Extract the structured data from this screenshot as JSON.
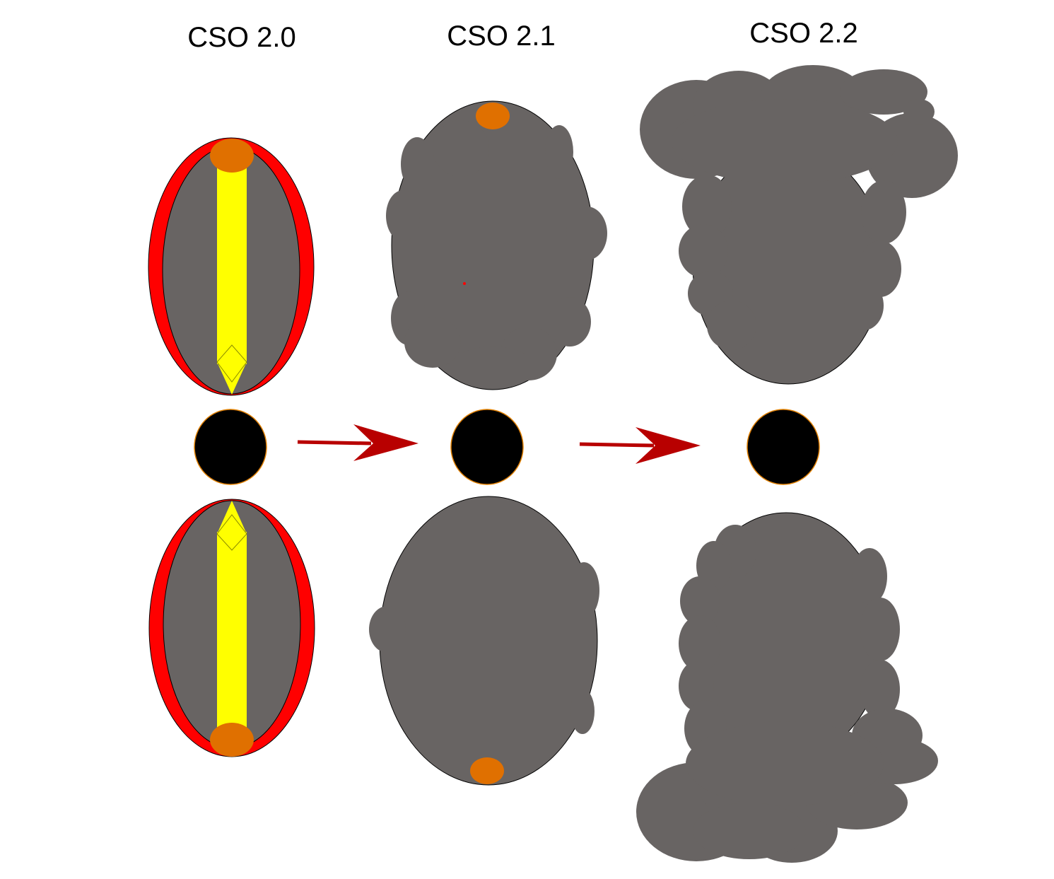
{
  "labels": {
    "stage_1": "CSO 2.0",
    "stage_2": "CSO 2.1",
    "stage_3": "CSO 2.2"
  },
  "colors": {
    "background": "#ffffff",
    "cloud_gray": "#686463",
    "jet_red": "#ff0000",
    "jet_yellow": "#ffff00",
    "hotspot_orange": "#e07000",
    "core_black": "#000000",
    "core_rim": "#e08000",
    "arrow_red": "#b80000",
    "outline": "#000000"
  }
}
